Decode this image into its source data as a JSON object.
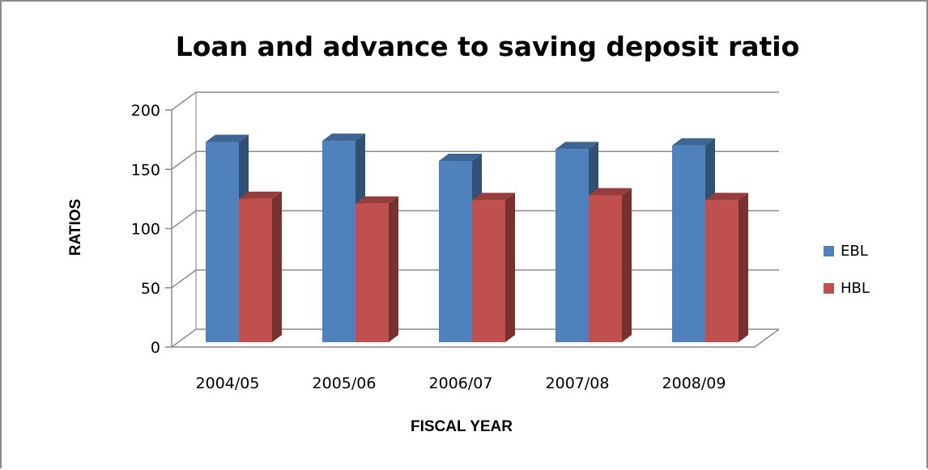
{
  "chart_data": {
    "type": "bar",
    "title": "Loan and advance to saving deposit ratio",
    "xlabel": "FISCAL YEAR",
    "ylabel": "RATIOS",
    "categories": [
      "2004/05",
      "2005/06",
      "2006/07",
      "2007/08",
      "2008/09"
    ],
    "series": [
      {
        "name": "EBL",
        "values": [
          158,
          159,
          142,
          152,
          155
        ],
        "color": "#4f81bd"
      },
      {
        "name": "HBL",
        "values": [
          110,
          106,
          109,
          113,
          109
        ],
        "color": "#c0504d"
      }
    ],
    "ylim": [
      0,
      200
    ],
    "yticks": [
      0,
      50,
      100,
      150,
      200
    ],
    "grid": true,
    "legend_position": "right",
    "style": "3d-clustered-column"
  }
}
